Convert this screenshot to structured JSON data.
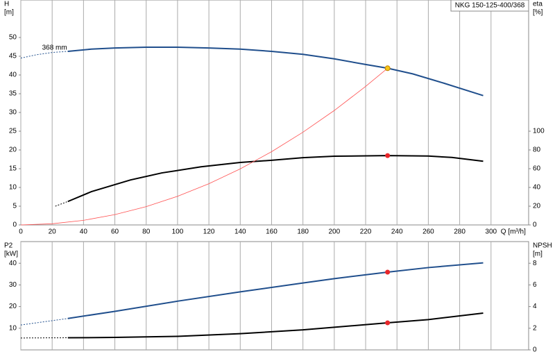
{
  "chart_data": [
    {
      "type": "line",
      "title": "NKG 150-125-400/368",
      "annotation": "368 mm",
      "y_label": "H",
      "y_unit": "[m]",
      "y2_label": "eta",
      "y2_unit": "[%]",
      "x_label": "Q [m³/h]",
      "xlim": [
        0,
        324
      ],
      "xticks": [
        0,
        20,
        40,
        60,
        80,
        100,
        120,
        140,
        160,
        180,
        200,
        220,
        240,
        260,
        280,
        300
      ],
      "ylim": [
        0,
        60
      ],
      "yticks": [
        0,
        5,
        10,
        15,
        20,
        25,
        30,
        35,
        40,
        45,
        50
      ],
      "y2lim": [
        0,
        240
      ],
      "y2ticks": [
        0,
        20,
        40,
        60,
        80,
        100
      ],
      "grid": true,
      "series": [
        {
          "axis": "y",
          "color": "#1f4e8c",
          "style": "dashed",
          "x": [
            0,
            10,
            20,
            30
          ],
          "values": [
            44.5,
            45.4,
            46.0,
            46.3
          ]
        },
        {
          "axis": "y",
          "color": "#1f4e8c",
          "style": "solid",
          "x": [
            30,
            45,
            60,
            80,
            100,
            120,
            140,
            160,
            180,
            200,
            220,
            234,
            250,
            270,
            295
          ],
          "values": [
            46.3,
            46.9,
            47.2,
            47.4,
            47.4,
            47.2,
            46.9,
            46.3,
            45.5,
            44.3,
            42.8,
            41.8,
            40.3,
            37.8,
            34.5
          ]
        },
        {
          "axis": "y2",
          "color": "#000000",
          "style": "dashed",
          "x": [
            22,
            30
          ],
          "values": [
            20,
            25
          ]
        },
        {
          "axis": "y2",
          "color": "#000000",
          "style": "solid",
          "x": [
            30,
            45,
            70,
            90,
            115,
            140,
            160,
            180,
            200,
            234,
            260,
            275,
            295
          ],
          "values": [
            25,
            35.5,
            48,
            55.5,
            62,
            66.7,
            69,
            71.8,
            73.3,
            74,
            73.5,
            72,
            68
          ]
        },
        {
          "axis": "y",
          "color": "#ff5050",
          "style": "thin",
          "x": [
            0,
            20,
            40,
            60,
            80,
            100,
            120,
            140,
            160,
            180,
            200,
            220,
            234
          ],
          "values": [
            0,
            0.31,
            1.22,
            2.75,
            4.89,
            7.63,
            10.99,
            14.96,
            19.54,
            24.73,
            30.53,
            36.95,
            41.8
          ]
        },
        {
          "axis": "y",
          "color": "#f5c518",
          "style": "marker",
          "x": [
            234
          ],
          "values": [
            41.8
          ]
        },
        {
          "axis": "y2",
          "color": "#e8262a",
          "style": "marker",
          "x": [
            234
          ],
          "values": [
            74
          ]
        }
      ]
    },
    {
      "type": "line",
      "y_label": "P2",
      "y_unit": "[kW]",
      "y2_label": "NPSH",
      "y2_unit": "[m]",
      "xlim": [
        0,
        324
      ],
      "xticks": [
        0,
        20,
        40,
        60,
        80,
        100,
        120,
        140,
        160,
        180,
        200,
        220,
        240,
        260,
        280,
        300
      ],
      "ylim": [
        0,
        50
      ],
      "yticks": [
        10,
        20,
        30,
        40
      ],
      "y2lim": [
        0,
        10
      ],
      "y2ticks": [
        0,
        2,
        4,
        6,
        8
      ],
      "grid": true,
      "series": [
        {
          "axis": "y",
          "color": "#1f4e8c",
          "style": "dashed",
          "x": [
            0,
            30
          ],
          "values": [
            11.5,
            14.5
          ]
        },
        {
          "axis": "y",
          "color": "#1f4e8c",
          "style": "solid",
          "x": [
            30,
            60,
            100,
            140,
            180,
            200,
            234,
            260,
            295
          ],
          "values": [
            14.5,
            17.8,
            22.5,
            26.8,
            30.9,
            32.9,
            35.9,
            38,
            40.2
          ]
        },
        {
          "axis": "y2",
          "color": "#000000",
          "style": "dashed",
          "x": [
            0,
            30
          ],
          "values": [
            1.1,
            1.12
          ]
        },
        {
          "axis": "y2",
          "color": "#000000",
          "style": "solid",
          "x": [
            30,
            60,
            100,
            140,
            180,
            234,
            260,
            295
          ],
          "values": [
            1.12,
            1.15,
            1.25,
            1.5,
            1.85,
            2.5,
            2.8,
            3.4
          ]
        },
        {
          "axis": "y",
          "color": "#e8262a",
          "style": "marker",
          "x": [
            234
          ],
          "values": [
            35.9
          ]
        },
        {
          "axis": "y2",
          "color": "#e8262a",
          "style": "marker",
          "x": [
            234
          ],
          "values": [
            2.5
          ]
        }
      ]
    }
  ]
}
